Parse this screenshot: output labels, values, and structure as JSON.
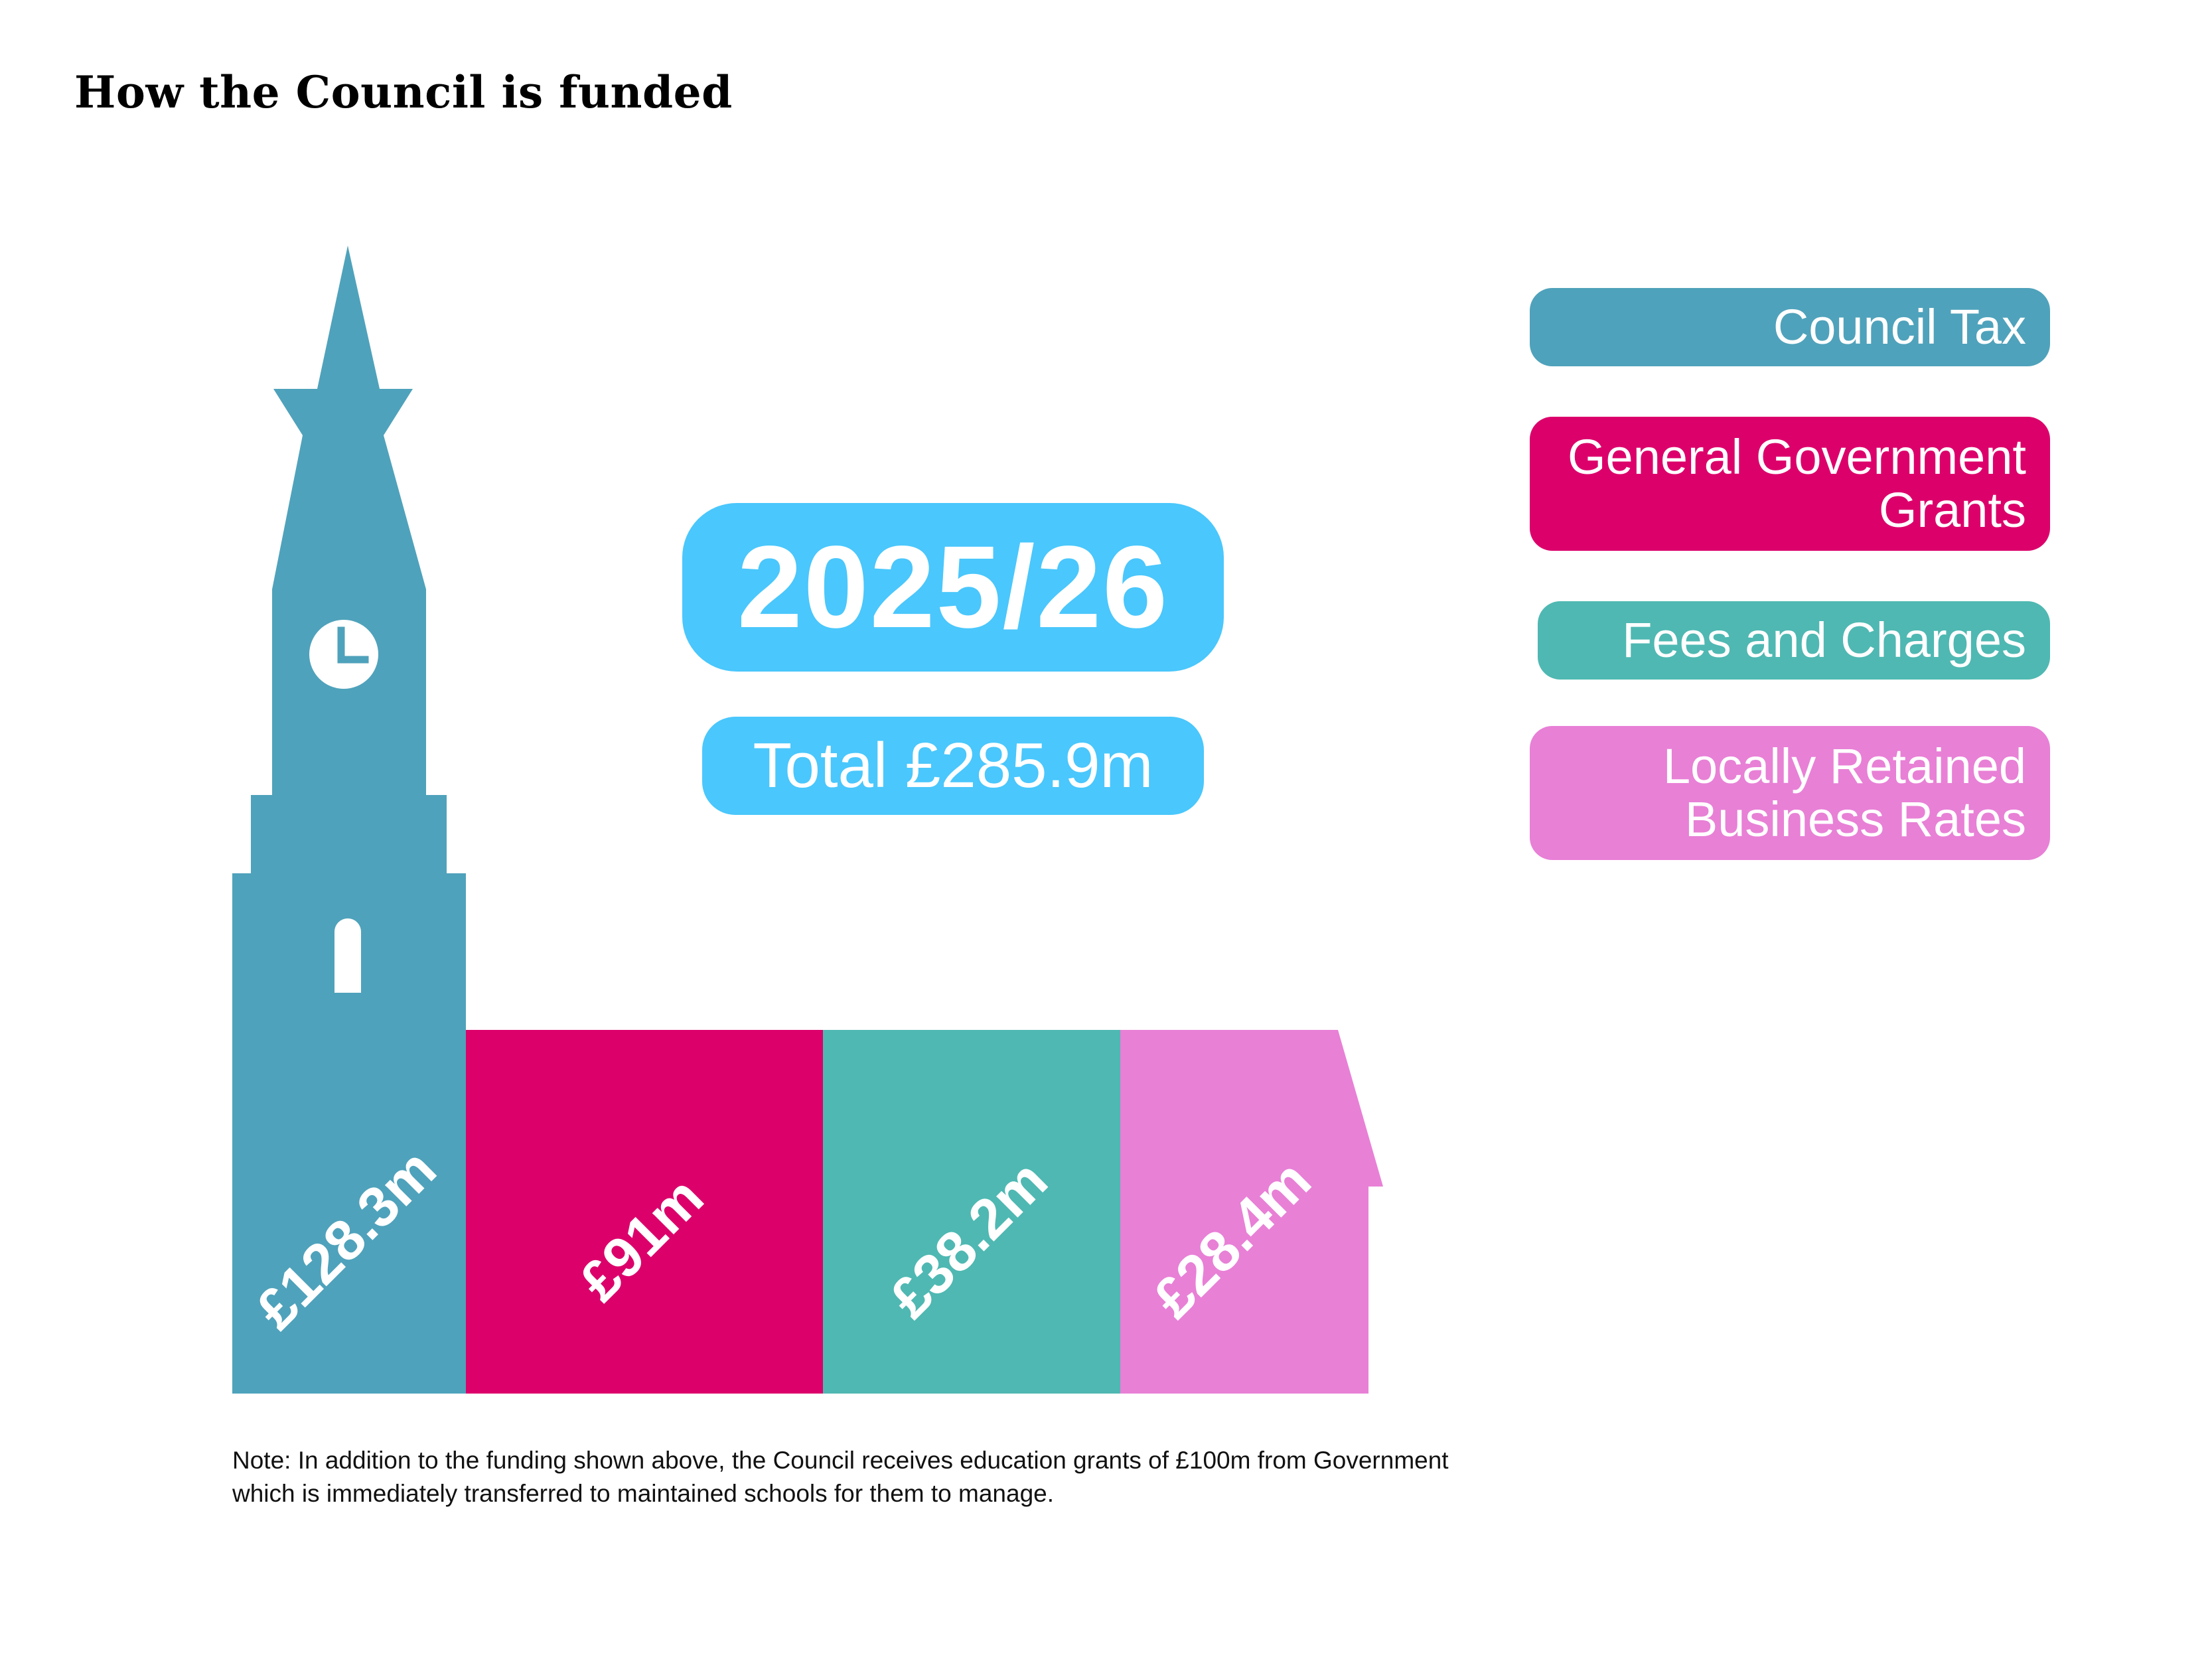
{
  "title": "How the Council is funded",
  "year_badge": "2025/26",
  "total_badge": "Total £285.9m",
  "colors": {
    "council_tax": "#4fa2bb",
    "government_grants": "#dc006b",
    "fees_charges": "#4fb8b2",
    "business_rates": "#e880d6",
    "badge": "#4ac7fc"
  },
  "chart_data": {
    "type": "bar",
    "title": "How the Council is funded",
    "categories": [
      "Council Tax",
      "General Government Grants",
      "Fees and Charges",
      "Locally Retained Business Rates"
    ],
    "values": [
      128.3,
      91,
      38.2,
      28.4
    ],
    "labels": [
      "£128.3m",
      "£91m",
      "£38.2m",
      "£28.4m"
    ],
    "total": 285.9,
    "unit": "£m"
  },
  "legend": [
    {
      "label": "Council Tax",
      "color": "#4fa2bb"
    },
    {
      "label": "General Government Grants",
      "color": "#dc006b"
    },
    {
      "label": "Fees and Charges",
      "color": "#4fb8b2"
    },
    {
      "label": "Locally Retained Business Rates",
      "color": "#e880d6"
    }
  ],
  "note": "Note: In addition to the funding shown above, the Council receives education grants of £100m from Government which is immediately transferred to maintained schools for them to manage."
}
